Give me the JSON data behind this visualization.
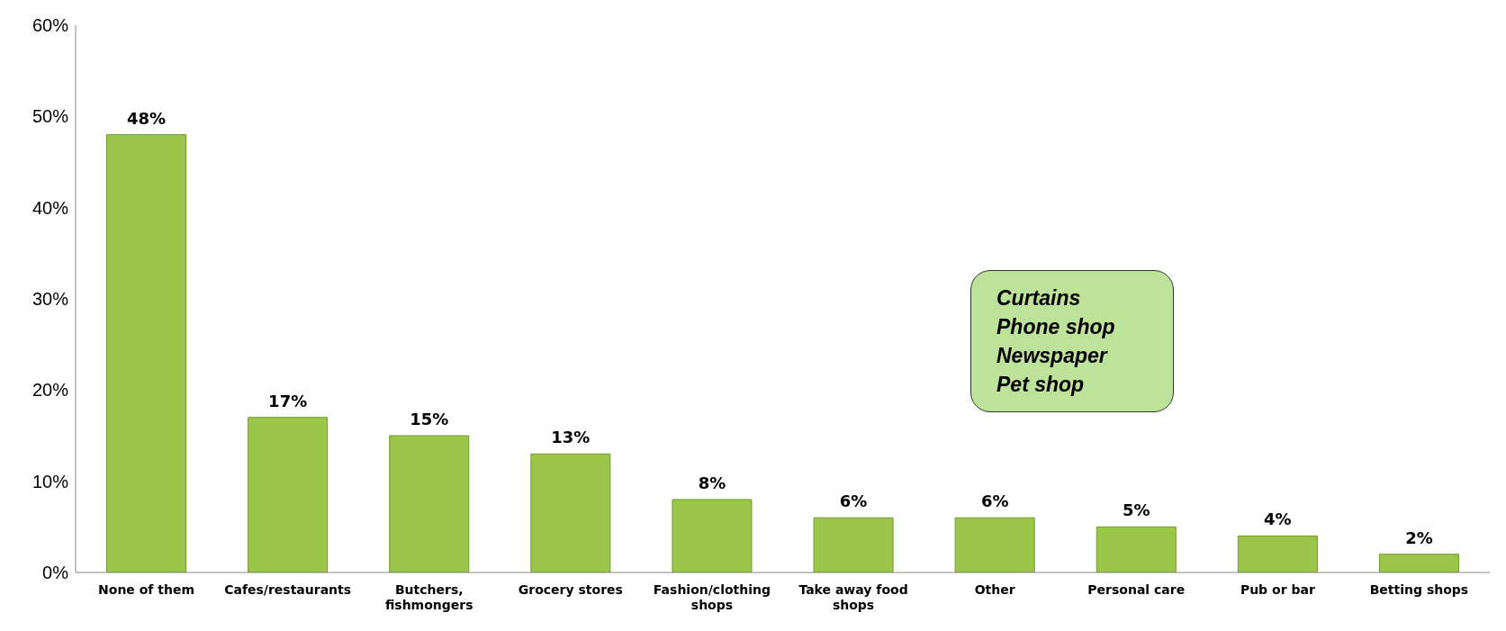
{
  "chart_data": {
    "type": "bar",
    "categories": [
      "None of them",
      "Cafes/restaurants",
      "Butchers, fishmongers",
      "Grocery stores",
      "Fashion/clothing shops",
      "Take away food shops",
      "Other",
      "Personal care",
      "Pub or bar",
      "Betting shops"
    ],
    "values": [
      48,
      17,
      15,
      13,
      8,
      6,
      6,
      5,
      4,
      2
    ],
    "value_labels": [
      "48%",
      "17%",
      "15%",
      "13%",
      "8%",
      "6%",
      "6%",
      "5%",
      "4%",
      "2%"
    ],
    "color": "#9bc64a",
    "ylim": [
      0,
      60
    ],
    "yticks": [
      {
        "value": 0,
        "label": "0%"
      },
      {
        "value": 10,
        "label": "10%"
      },
      {
        "value": 20,
        "label": "20%"
      },
      {
        "value": 30,
        "label": "30%"
      },
      {
        "value": 40,
        "label": "40%"
      },
      {
        "value": 50,
        "label": "50%"
      },
      {
        "value": 60,
        "label": "60%"
      }
    ],
    "annotations": [
      "Curtains",
      "Phone shop",
      "Newspaper",
      "Pet shop"
    ],
    "grid": false,
    "legend": false
  }
}
